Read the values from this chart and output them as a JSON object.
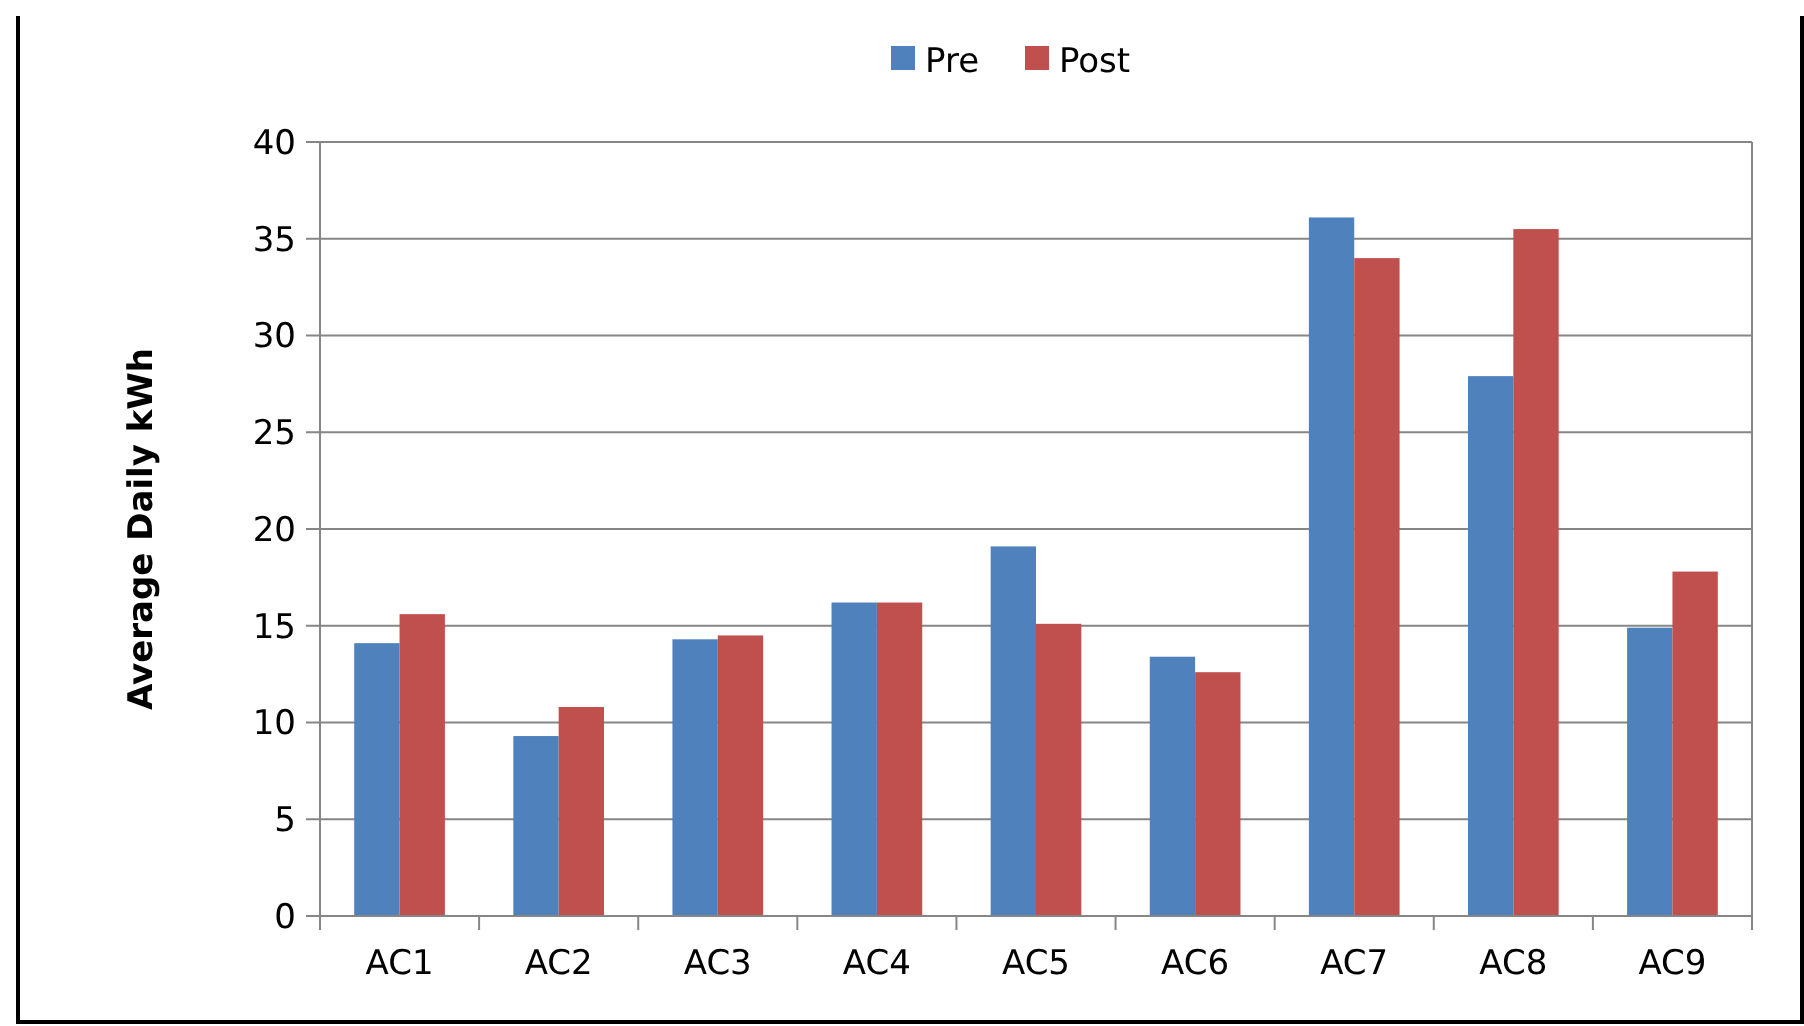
{
  "chart_data": {
    "type": "bar",
    "ylabel": "Average Daily kWh",
    "categories": [
      "AC1",
      "AC2",
      "AC3",
      "AC4",
      "AC5",
      "AC6",
      "AC7",
      "AC8",
      "AC9"
    ],
    "series": [
      {
        "name": "Pre",
        "color": "#4f81bd",
        "values": [
          14.1,
          9.3,
          14.3,
          16.2,
          19.1,
          13.4,
          36.1,
          27.9,
          14.9
        ]
      },
      {
        "name": "Post",
        "color": "#c0504d",
        "values": [
          15.6,
          10.8,
          14.5,
          16.2,
          15.1,
          12.6,
          34.0,
          35.5,
          17.8
        ]
      }
    ],
    "ylim": [
      0,
      40
    ],
    "yticks": [
      0,
      5,
      10,
      15,
      20,
      25,
      30,
      35,
      40
    ],
    "grid": "y",
    "legend": "top"
  }
}
